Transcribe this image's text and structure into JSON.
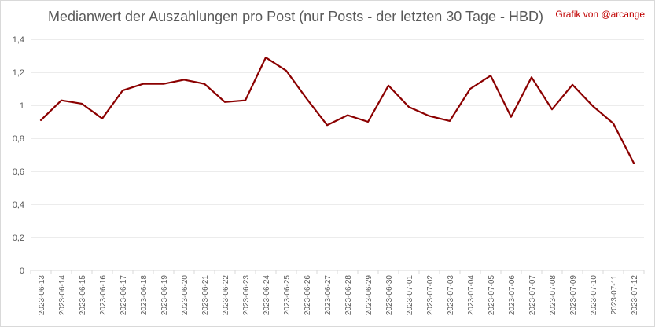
{
  "chart_data": {
    "type": "line",
    "title": "Medianwert der Auszahlungen pro Post (nur Posts - der letzten 30 Tage - HBD)",
    "credit": "Grafik von @arcange",
    "xlabel": "",
    "ylabel": "",
    "ylim": [
      0,
      1.4
    ],
    "y_ticks": [
      "0",
      "0,2",
      "0,4",
      "0,6",
      "0,8",
      "1",
      "1,2",
      "1,4"
    ],
    "grid": true,
    "legend": "none",
    "line_color": "#8b0000",
    "categories": [
      "2023-06-13",
      "2023-06-14",
      "2023-06-15",
      "2023-06-16",
      "2023-06-17",
      "2023-06-18",
      "2023-06-19",
      "2023-06-20",
      "2023-06-21",
      "2023-06-22",
      "2023-06-23",
      "2023-06-24",
      "2023-06-25",
      "2023-06-26",
      "2023-06-27",
      "2023-06-28",
      "2023-06-29",
      "2023-06-30",
      "2023-07-01",
      "2023-07-02",
      "2023-07-03",
      "2023-07-04",
      "2023-07-05",
      "2023-07-06",
      "2023-07-07",
      "2023-07-08",
      "2023-07-09",
      "2023-07-10",
      "2023-07-11",
      "2023-07-12"
    ],
    "values": [
      0.91,
      1.03,
      1.01,
      0.92,
      1.09,
      1.13,
      1.13,
      1.155,
      1.13,
      1.02,
      1.03,
      1.29,
      1.21,
      1.04,
      0.88,
      0.94,
      0.9,
      1.12,
      0.99,
      0.935,
      0.905,
      1.1,
      1.18,
      0.93,
      1.17,
      0.975,
      1.125,
      0.995,
      0.89,
      0.65
    ]
  }
}
